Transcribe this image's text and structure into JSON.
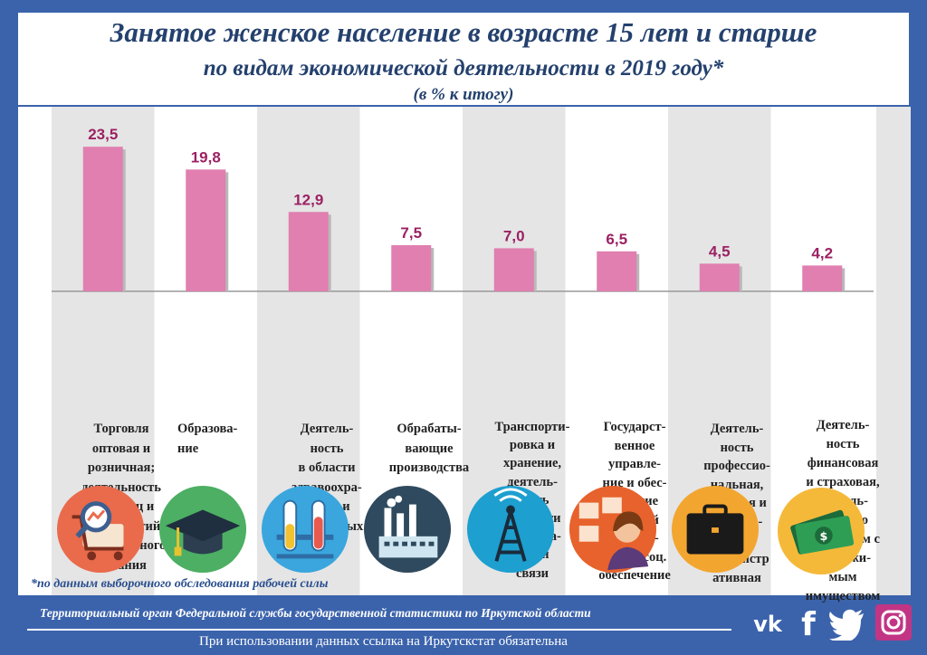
{
  "title": {
    "line1": "Занятое  женское население в возрасте 15 лет и старше",
    "line2": "по видам экономической деятельности в 2019 году*",
    "line3": "(в % к итогу)"
  },
  "chart_data": {
    "type": "bar",
    "categories": [
      "Торговля\nоптовая и\nрозничная;\nдеятельность\nгостиниц и\nпредприятий\nобщественного\nпитания",
      "Образова-\nние",
      "Деятель-\nность\nв области\nздравоохра-\nнения и\nсоциальных\nуслуг",
      "Обрабаты-\nвающие\nпроизводства",
      "Транспорти-\nровка и\nхранение,\nдеятель-\nность\nв области\nинформа-\nции и\nсвязи",
      "Государст-\nвенное\nуправле-\nние и обес-\nпечение\nвоенной\nбезопас-\nности, соц.\nобеспечение",
      "Деятель-\nность\nпрофессио-\nнальная,\nнаучная и\nтехниче-\nская;\nадминистр\nативная",
      "Деятель-\nность\nфинансовая\nи страховая,\nдеятель-\nность по\nоперациям с\nнедвижи-\nмым\nимуществом"
    ],
    "values": [
      23.5,
      19.8,
      12.9,
      7.5,
      7.0,
      6.5,
      4.5,
      4.2
    ],
    "value_labels": [
      "23,5",
      "19,8",
      "12,9",
      "7,5",
      "7,0",
      "6,5",
      "4,5",
      "4,2"
    ],
    "ylim": [
      0,
      25
    ],
    "bar_color": "#e07fb0",
    "label_color": "#9b2163",
    "xlabel": "",
    "ylabel": ""
  },
  "icons": [
    "retail-analytics-icon",
    "graduation-cap-icon",
    "test-tubes-icon",
    "factory-icon",
    "radio-tower-icon",
    "public-servant-icon",
    "briefcase-icon",
    "money-icon"
  ],
  "footnote": "*по данным выборочного обследования рабочей силы",
  "footer": {
    "agency": "Территориальный орган Федеральной службы государственной статистики по Иркутской области",
    "notice": "При использовании данных ссылка на Иркутскстат обязательна"
  },
  "social": [
    "vk-icon",
    "facebook-icon",
    "twitter-icon",
    "instagram-icon"
  ],
  "colors": {
    "frame": "#3b63ac",
    "title": "#24416e",
    "stripe": "#e5e5e5"
  }
}
